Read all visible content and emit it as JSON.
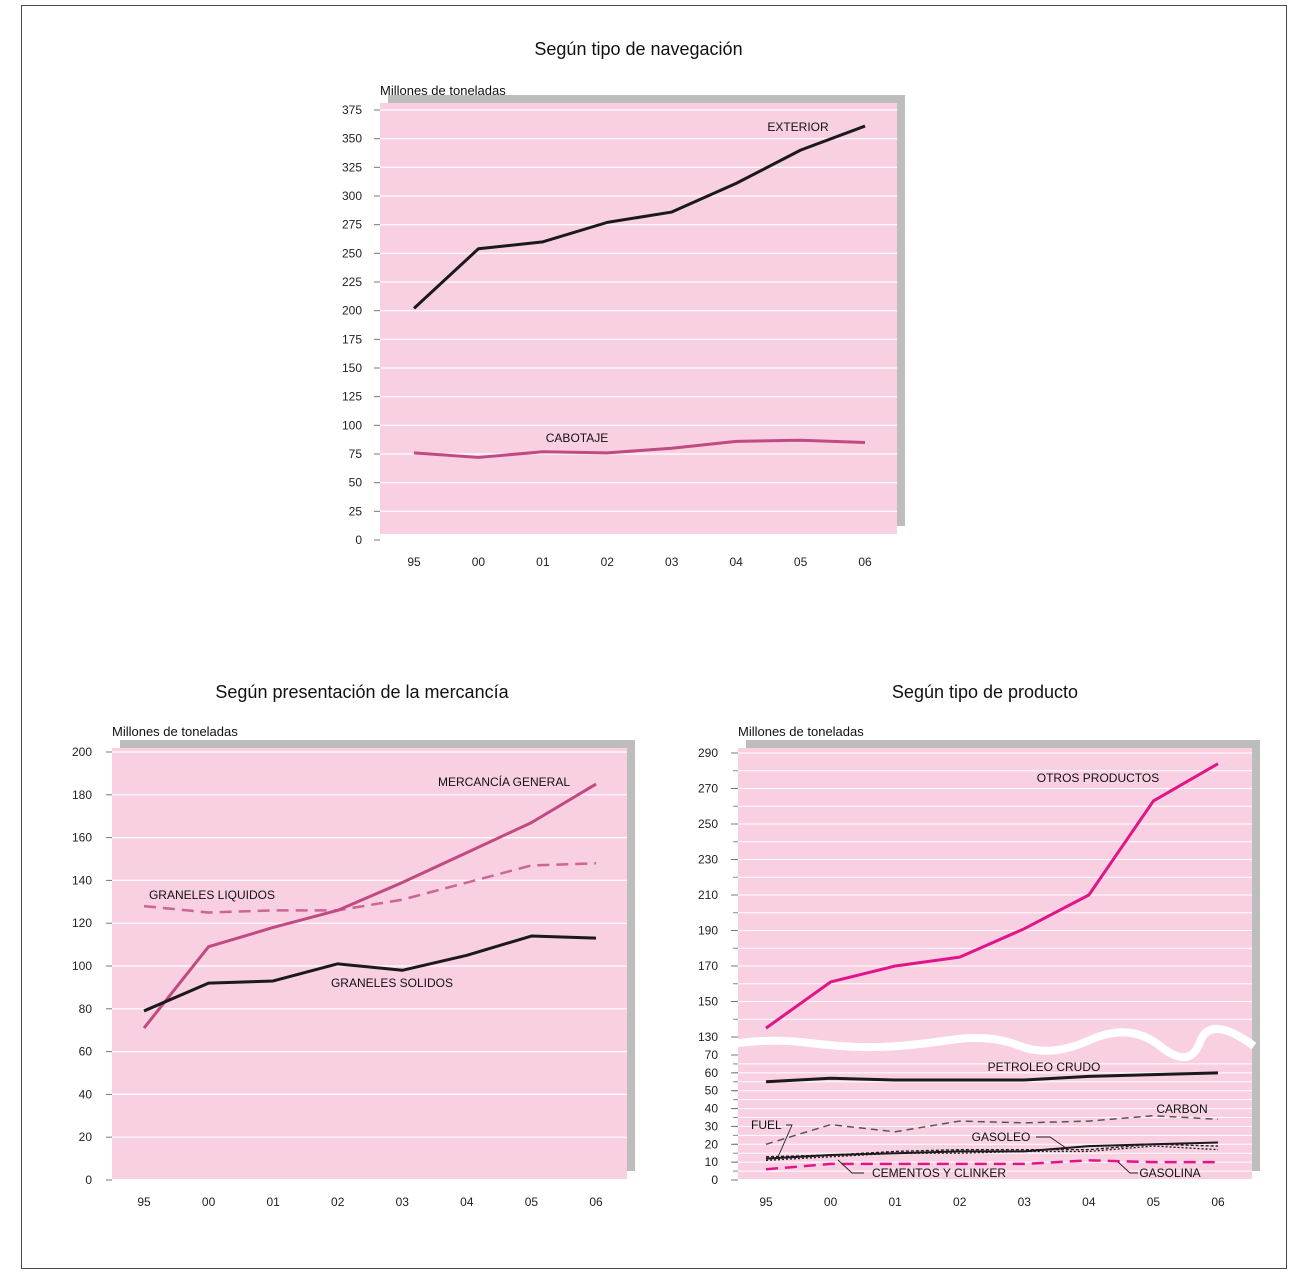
{
  "colors": {
    "panel": "#f8d0e2",
    "shadow": "#bdbdbd",
    "grid": "#ffffff",
    "black": "#1a1a1a",
    "rose": "#c04a82",
    "magenta": "#e0158a",
    "gray": "#555555"
  },
  "chart_data": [
    {
      "type": "line",
      "title": "Según tipo de navegación",
      "ylabel": "Millones de toneladas",
      "categories": [
        "95",
        "00",
        "01",
        "02",
        "03",
        "04",
        "05",
        "06"
      ],
      "ylim": [
        0,
        375
      ],
      "yticks": [
        "375",
        "350",
        "325",
        "300",
        "275",
        "250",
        "225",
        "200",
        "175",
        "150",
        "125",
        "100",
        "75",
        "50",
        "25",
        "0"
      ],
      "grid": true,
      "series": [
        {
          "name": "EXTERIOR",
          "values": [
            202,
            254,
            260,
            277,
            286,
            311,
            340,
            361
          ]
        },
        {
          "name": "CABOTAJE",
          "values": [
            76,
            72,
            77,
            76,
            80,
            86,
            87,
            85
          ]
        }
      ]
    },
    {
      "type": "line",
      "title": "Según presentación de la mercancía",
      "ylabel": "Millones de toneladas",
      "categories": [
        "95",
        "00",
        "01",
        "02",
        "03",
        "04",
        "05",
        "06"
      ],
      "ylim": [
        0,
        200
      ],
      "yticks": [
        "200",
        "180",
        "160",
        "140",
        "120",
        "100",
        "80",
        "60",
        "40",
        "20",
        "0"
      ],
      "grid": true,
      "series": [
        {
          "name": "MERCANCÍA GENERAL",
          "values": [
            71,
            109,
            118,
            126,
            139,
            153,
            167,
            185
          ]
        },
        {
          "name": "GRANELES LIQUIDOS",
          "values": [
            128,
            125,
            126,
            126,
            131,
            139,
            147,
            148
          ]
        },
        {
          "name": "GRANELES SOLIDOS",
          "values": [
            79,
            92,
            93,
            101,
            98,
            105,
            114,
            113
          ]
        }
      ]
    },
    {
      "type": "line",
      "title": "Según tipo de producto",
      "ylabel": "Millones de toneladas",
      "categories": [
        "95",
        "00",
        "01",
        "02",
        "03",
        "04",
        "05",
        "06"
      ],
      "ylim": [
        0,
        290
      ],
      "axis_break": "70-130",
      "yticks": [
        "290",
        "270",
        "250",
        "230",
        "210",
        "190",
        "170",
        "150",
        "130",
        "70",
        "60",
        "50",
        "40",
        "30",
        "20",
        "10",
        "0"
      ],
      "grid": true,
      "series": [
        {
          "name": "OTROS PRODUCTOS",
          "values": [
            135,
            161,
            170,
            175,
            191,
            210,
            263,
            284
          ]
        },
        {
          "name": "PETROLEO CRUDO",
          "values": [
            55,
            57,
            56,
            56,
            56,
            58,
            59,
            60
          ]
        },
        {
          "name": "CARBON",
          "values": [
            20,
            31,
            27,
            33,
            32,
            33,
            36,
            34
          ]
        },
        {
          "name": "GASOLEO",
          "values": [
            12,
            14,
            15,
            16,
            16,
            19,
            20,
            21
          ]
        },
        {
          "name": "FUEL",
          "values": [
            13,
            14,
            16,
            17,
            17,
            17,
            20,
            19
          ]
        },
        {
          "name": "CEMENTOS Y CLINKER",
          "values": [
            11,
            13,
            15,
            15,
            16,
            16,
            19,
            17
          ]
        },
        {
          "name": "GASOLINA",
          "values": [
            6,
            9,
            9,
            9,
            9,
            11,
            10,
            10
          ]
        }
      ]
    }
  ]
}
